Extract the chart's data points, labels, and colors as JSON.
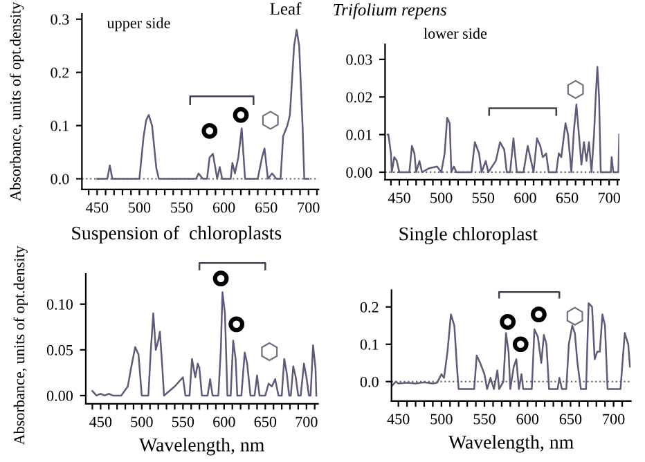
{
  "chart_data": [
    {
      "type": "line",
      "ylabel": "Absorbance, units of opt.density",
      "annotations": [
        "upper side",
        "Leaf"
      ],
      "xlim": [
        432,
        712
      ],
      "ylim": [
        -0.02,
        0.31
      ],
      "xticks": [
        {
          "value": 440,
          "label": null
        },
        450,
        {
          "value": 460,
          "label": null
        },
        {
          "value": 470,
          "label": null
        },
        {
          "value": 480,
          "label": null
        },
        {
          "value": 490,
          "label": null
        },
        500,
        {
          "value": 510,
          "label": null
        },
        {
          "value": 520,
          "label": null
        },
        {
          "value": 530,
          "label": null
        },
        {
          "value": 540,
          "label": null
        },
        550,
        {
          "value": 560,
          "label": null
        },
        {
          "value": 570,
          "label": null
        },
        {
          "value": 580,
          "label": null
        },
        {
          "value": 590,
          "label": null
        },
        600,
        {
          "value": 610,
          "label": null
        },
        {
          "value": 620,
          "label": null
        },
        {
          "value": 630,
          "label": null
        },
        {
          "value": 640,
          "label": null
        },
        650,
        {
          "value": 660,
          "label": null
        },
        {
          "value": 670,
          "label": null
        },
        {
          "value": 680,
          "label": null
        },
        {
          "value": 690,
          "label": null
        },
        700,
        {
          "value": 710,
          "label": null
        }
      ],
      "yticks": [
        {
          "value": 0,
          "label": "0.0"
        },
        {
          "value": 0.1,
          "label": "0.1"
        },
        {
          "value": 0.2,
          "label": "0.2"
        },
        {
          "value": 0.3,
          "label": "0.3"
        }
      ],
      "ref_lines": [
        {
          "axis": "y",
          "value": 0,
          "line_style": "dotted",
          "color": "#606070"
        }
      ],
      "grid": false,
      "legend": false,
      "marker": "none",
      "line_style": "solid",
      "series": [
        {
          "color": "#5c5c78",
          "x": [
            450,
            462,
            465,
            468,
            500,
            505,
            508,
            511,
            515,
            520,
            523,
            567,
            570,
            575,
            580,
            583,
            587,
            592,
            595,
            598,
            608,
            610,
            613,
            617,
            621,
            625,
            640,
            645,
            648,
            652,
            657,
            662,
            667,
            670,
            675,
            678,
            683,
            686,
            689,
            693,
            695,
            700
          ],
          "values": [
            0,
            0,
            0.025,
            0,
            0,
            0.08,
            0.11,
            0.12,
            0.1,
            0.02,
            0,
            0,
            0.01,
            0,
            0,
            0.04,
            0.047,
            0,
            0.022,
            0,
            0,
            0.03,
            0.01,
            0.04,
            0.095,
            0,
            0,
            0.04,
            0.057,
            0,
            0.01,
            0,
            0,
            0.08,
            0.1,
            0.12,
            0.25,
            0.28,
            0.25,
            0.1,
            0,
            0
          ]
        }
      ]
    },
    {
      "type": "line",
      "annotations": [
        "lower side",
        "Trifolium repens"
      ],
      "xlim": [
        433,
        712
      ],
      "ylim": [
        -0.002,
        0.034
      ],
      "xticks": [
        {
          "value": 440,
          "label": null
        },
        450,
        {
          "value": 460,
          "label": null
        },
        {
          "value": 470,
          "label": null
        },
        {
          "value": 480,
          "label": null
        },
        {
          "value": 490,
          "label": null
        },
        500,
        {
          "value": 510,
          "label": null
        },
        {
          "value": 520,
          "label": null
        },
        {
          "value": 530,
          "label": null
        },
        {
          "value": 540,
          "label": null
        },
        550,
        {
          "value": 560,
          "label": null
        },
        {
          "value": 570,
          "label": null
        },
        {
          "value": 580,
          "label": null
        },
        {
          "value": 590,
          "label": null
        },
        600,
        {
          "value": 610,
          "label": null
        },
        {
          "value": 620,
          "label": null
        },
        {
          "value": 630,
          "label": null
        },
        {
          "value": 640,
          "label": null
        },
        650,
        {
          "value": 660,
          "label": null
        },
        {
          "value": 670,
          "label": null
        },
        {
          "value": 680,
          "label": null
        },
        {
          "value": 690,
          "label": null
        },
        700,
        {
          "value": 710,
          "label": null
        }
      ],
      "yticks": [
        {
          "value": 0,
          "label": "0.00"
        },
        {
          "value": 0.01,
          "label": "0.01"
        },
        {
          "value": 0.02,
          "label": "0.02"
        },
        {
          "value": 0.03,
          "label": "0.03"
        }
      ],
      "ref_lines": [
        {
          "axis": "y",
          "value": 0,
          "line_style": "dotted",
          "color": "#606070"
        }
      ],
      "grid": false,
      "legend": false,
      "marker": "none",
      "line_style": "solid",
      "series": [
        {
          "color": "#5c5c78",
          "x": [
            436,
            437,
            440,
            441,
            444,
            447,
            450,
            462,
            465,
            468,
            470,
            474,
            477,
            485,
            495,
            500,
            504,
            507,
            510,
            512,
            515,
            518,
            536,
            540,
            545,
            548,
            553,
            556,
            565,
            570,
            575,
            578,
            582,
            586,
            590,
            598,
            603,
            606,
            610,
            614,
            618,
            621,
            625,
            628,
            637,
            640,
            643,
            648,
            651,
            655,
            658,
            661,
            664,
            667,
            670,
            673,
            676,
            679,
            682,
            684,
            686,
            688,
            690,
            702,
            703,
            705,
            711,
            712
          ],
          "values": [
            0.01,
            0.01,
            0.005,
            0,
            0.004,
            0.003,
            0,
            0,
            0.007,
            0.005,
            0,
            0.003,
            0,
            0.001,
            0.0015,
            0,
            0.005,
            0.0145,
            0.013,
            0,
            0.0015,
            0,
            0,
            0.008,
            0.005,
            0,
            0.003,
            0,
            0.003,
            0.008,
            0.006,
            0,
            0,
            0.009,
            0,
            0,
            0.007,
            0.004,
            0,
            0.009,
            0.007,
            0.004,
            0.005,
            0,
            0,
            0.005,
            0.004,
            0.013,
            0.01,
            0,
            0.011,
            0.018,
            0.01,
            0.002,
            0.008,
            0.003,
            0.008,
            0,
            0.01,
            0.02,
            0.028,
            0.02,
            0,
            0,
            0.004,
            0,
            0,
            0.01
          ]
        }
      ]
    },
    {
      "type": "line",
      "title": "Suspension of  chloroplasts",
      "xlabel": "Wavelength, nm",
      "ylabel": "Absorbance, units of opt.density",
      "xlim": [
        432,
        714
      ],
      "ylim": [
        -0.009,
        0.133
      ],
      "xticks": [
        {
          "value": 440,
          "label": null
        },
        450,
        {
          "value": 460,
          "label": null
        },
        {
          "value": 470,
          "label": null
        },
        {
          "value": 480,
          "label": null
        },
        {
          "value": 490,
          "label": null
        },
        500,
        {
          "value": 510,
          "label": null
        },
        {
          "value": 520,
          "label": null
        },
        {
          "value": 530,
          "label": null
        },
        {
          "value": 540,
          "label": null
        },
        550,
        {
          "value": 560,
          "label": null
        },
        {
          "value": 570,
          "label": null
        },
        {
          "value": 580,
          "label": null
        },
        {
          "value": 590,
          "label": null
        },
        600,
        {
          "value": 610,
          "label": null
        },
        {
          "value": 620,
          "label": null
        },
        {
          "value": 630,
          "label": null
        },
        {
          "value": 640,
          "label": null
        },
        650,
        {
          "value": 660,
          "label": null
        },
        {
          "value": 670,
          "label": null
        },
        {
          "value": 680,
          "label": null
        },
        {
          "value": 690,
          "label": null
        },
        700,
        {
          "value": 710,
          "label": null
        }
      ],
      "yticks": [
        {
          "value": 0,
          "label": "0.00"
        },
        {
          "value": 0.05,
          "label": "0.05"
        },
        {
          "value": 0.1,
          "label": "0.10"
        }
      ],
      "grid": false,
      "legend": false,
      "marker": "none",
      "line_style": "solid",
      "series": [
        {
          "color": "#5c5c78",
          "x": [
            440,
            445,
            450,
            455,
            460,
            465,
            475,
            483,
            487,
            492,
            496,
            500,
            508,
            511,
            514,
            517,
            520,
            522,
            525,
            527,
            540,
            545,
            550,
            553,
            558,
            561,
            565,
            568,
            570,
            573,
            580,
            583,
            586,
            593,
            596,
            598,
            601,
            604,
            608,
            611,
            614,
            616,
            621,
            625,
            628,
            632,
            637,
            640,
            643,
            650,
            654,
            658,
            662,
            666,
            670,
            673,
            676,
            679,
            681,
            684,
            687,
            690,
            693,
            697,
            700,
            703,
            705,
            708,
            711,
            712
          ],
          "values": [
            0.005,
            0,
            0.002,
            0,
            0.002,
            0,
            0,
            0.01,
            0.03,
            0.053,
            0.045,
            0,
            0,
            0.05,
            0.09,
            0.05,
            0.06,
            0.07,
            0.03,
            0,
            0.01,
            0.015,
            0.02,
            0,
            0,
            0.04,
            0.02,
            0.035,
            0.03,
            0,
            0,
            0.018,
            0,
            0,
            0.05,
            0.113,
            0.09,
            0,
            0,
            0.06,
            0.04,
            0,
            0,
            0.047,
            0.035,
            0,
            0,
            0.022,
            0,
            0,
            0.013,
            0.01,
            0.018,
            0,
            0,
            0.04,
            0.025,
            0,
            0,
            0.032,
            0.02,
            0,
            0,
            0.035,
            0.02,
            0,
            0,
            0.055,
            0.03,
            0
          ]
        }
      ]
    },
    {
      "type": "line",
      "title": "Single chloroplast",
      "xlabel": "Wavelength, nm",
      "xlim": [
        442,
        720
      ],
      "ylim": [
        -0.052,
        0.245
      ],
      "xticks": [
        {
          "value": 450,
          "label": "450"
        },
        {
          "value": 460,
          "label": null
        },
        {
          "value": 470,
          "label": null
        },
        {
          "value": 480,
          "label": null
        },
        {
          "value": 490,
          "label": null
        },
        500,
        {
          "value": 510,
          "label": null
        },
        {
          "value": 520,
          "label": null
        },
        {
          "value": 530,
          "label": null
        },
        {
          "value": 540,
          "label": null
        },
        550,
        {
          "value": 560,
          "label": null
        },
        {
          "value": 570,
          "label": null
        },
        {
          "value": 580,
          "label": null
        },
        {
          "value": 590,
          "label": null
        },
        600,
        {
          "value": 610,
          "label": null
        },
        {
          "value": 620,
          "label": null
        },
        {
          "value": 630,
          "label": null
        },
        {
          "value": 640,
          "label": null
        },
        650,
        {
          "value": 660,
          "label": null
        },
        {
          "value": 670,
          "label": null
        },
        {
          "value": 680,
          "label": null
        },
        {
          "value": 690,
          "label": null
        },
        700,
        {
          "value": 710,
          "label": null
        }
      ],
      "yticks": [
        {
          "value": 0,
          "label": "0.0"
        },
        {
          "value": 0.1,
          "label": "0.1"
        },
        {
          "value": 0.2,
          "label": "0.2"
        }
      ],
      "ref_lines": [
        {
          "axis": "y",
          "value": 0,
          "line_style": "dotted",
          "color": "#606070"
        }
      ],
      "grid": false,
      "legend": false,
      "marker": "none",
      "line_style": "solid",
      "series": [
        {
          "color": "#5c5c78",
          "x": [
            443,
            447,
            450,
            460,
            470,
            480,
            490,
            495,
            500,
            503,
            507,
            511,
            515,
            518,
            520,
            538,
            541,
            545,
            550,
            553,
            557,
            561,
            565,
            567,
            572,
            575,
            578,
            580,
            584,
            587,
            590,
            593,
            595,
            605,
            608,
            612,
            616,
            619,
            622,
            625,
            635,
            637,
            640,
            645,
            648,
            652,
            655,
            658,
            662,
            668,
            671,
            675,
            678,
            681,
            684,
            687,
            690,
            693,
            708,
            713,
            717,
            719
          ],
          "values": [
            -0.01,
            0,
            -0.005,
            -0.003,
            -0.005,
            -0.002,
            -0.005,
            -0.003,
            0.02,
            0.01,
            0.08,
            0.18,
            0.15,
            0.04,
            -0.02,
            -0.02,
            0.07,
            0.05,
            0.02,
            -0.02,
            0.01,
            -0.02,
            0.03,
            -0.02,
            0,
            0.13,
            0.08,
            -0.02,
            0.04,
            0.06,
            -0.02,
            0.02,
            -0.02,
            -0.02,
            0.14,
            0.12,
            0.05,
            0.125,
            0.1,
            -0.02,
            -0.02,
            0.01,
            -0.02,
            -0.02,
            0.1,
            0.15,
            0.13,
            0.05,
            -0.02,
            -0.02,
            0.21,
            0.2,
            0.06,
            0.08,
            0.08,
            0.18,
            0.15,
            -0.02,
            -0.02,
            0.13,
            0.1,
            0.04
          ]
        }
      ]
    }
  ]
}
